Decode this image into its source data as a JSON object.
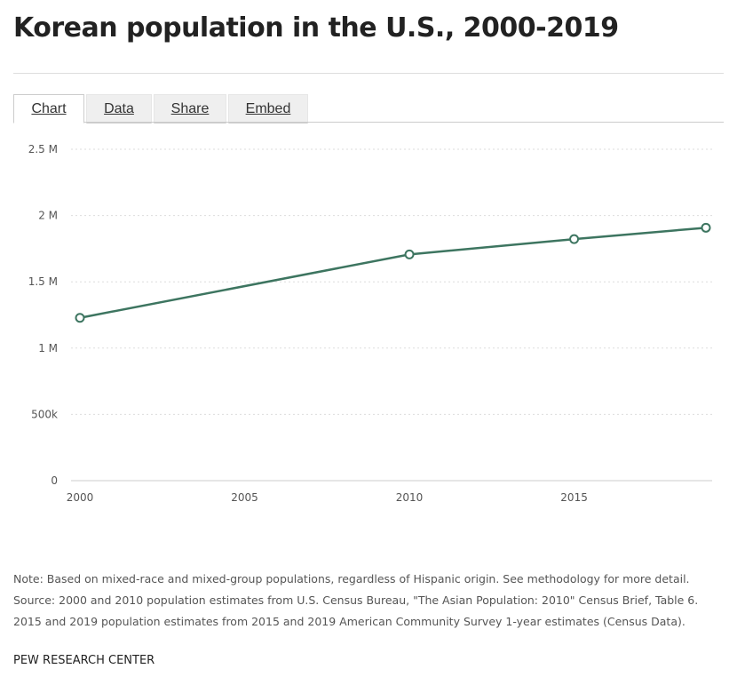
{
  "header": {
    "title": "Korean population in the U.S., 2000-2019"
  },
  "tabs": [
    {
      "label": "Chart"
    },
    {
      "label": "Data"
    },
    {
      "label": "Share"
    },
    {
      "label": "Embed"
    }
  ],
  "chart_data": {
    "type": "line",
    "title": "Korean population in the U.S., 2000-2019",
    "x": [
      2000,
      2010,
      2015,
      2019
    ],
    "series": [
      {
        "name": "Korean population",
        "values": [
          1228427,
          1706822,
          1822213,
          1908053
        ],
        "color": "#3d7560"
      }
    ],
    "xlim": [
      2000,
      2019
    ],
    "ylim": [
      0,
      2500000
    ],
    "xticks": [
      2000,
      2005,
      2010,
      2015
    ],
    "xtick_labels": [
      "2000",
      "2005",
      "2010",
      "2015"
    ],
    "yticks": [
      0,
      500000,
      1000000,
      1500000,
      2000000,
      2500000
    ],
    "ytick_labels": [
      "0",
      "500k",
      "1 M",
      "1.5 M",
      "2 M",
      "2.5 M"
    ],
    "grid": true,
    "xlabel": "",
    "ylabel": ""
  },
  "notes": [
    "Note: Based on mixed-race and mixed-group populations, regardless of Hispanic origin. See methodology for more detail.",
    "Source: 2000 and 2010 population estimates from U.S. Census Bureau, \"The Asian Population: 2010\" Census Brief, Table 6.",
    "2015 and 2019 population estimates from 2015 and 2019 American Community Survey 1-year estimates (Census Data)."
  ],
  "brand": "PEW RESEARCH CENTER"
}
